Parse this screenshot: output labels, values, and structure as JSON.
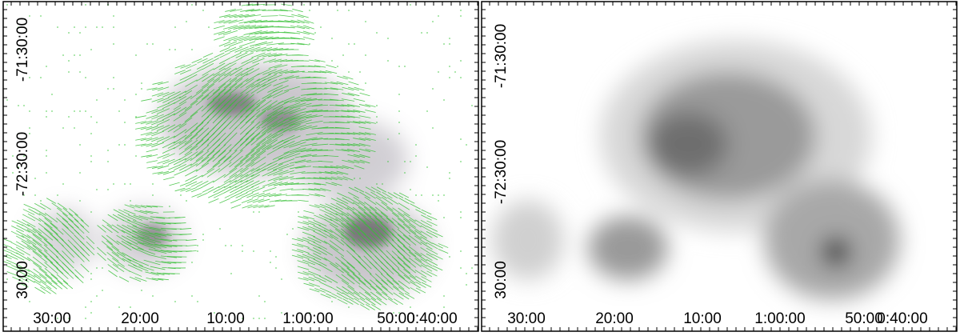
{
  "panels": [
    {
      "x_labels": [
        "30:00",
        "20:00",
        "10:00",
        "1:00:00",
        "50:00",
        "0:40:00"
      ],
      "y_labels": [
        "-71:30:00",
        "-72:30:00",
        "30:00"
      ]
    },
    {
      "x_labels": [
        "30:00",
        "20:00",
        "10:00",
        "1:00:00",
        "50:00",
        "0:40:00"
      ],
      "y_labels": [
        "-71:30:00",
        "-72:30:00",
        "30:00"
      ]
    }
  ]
}
